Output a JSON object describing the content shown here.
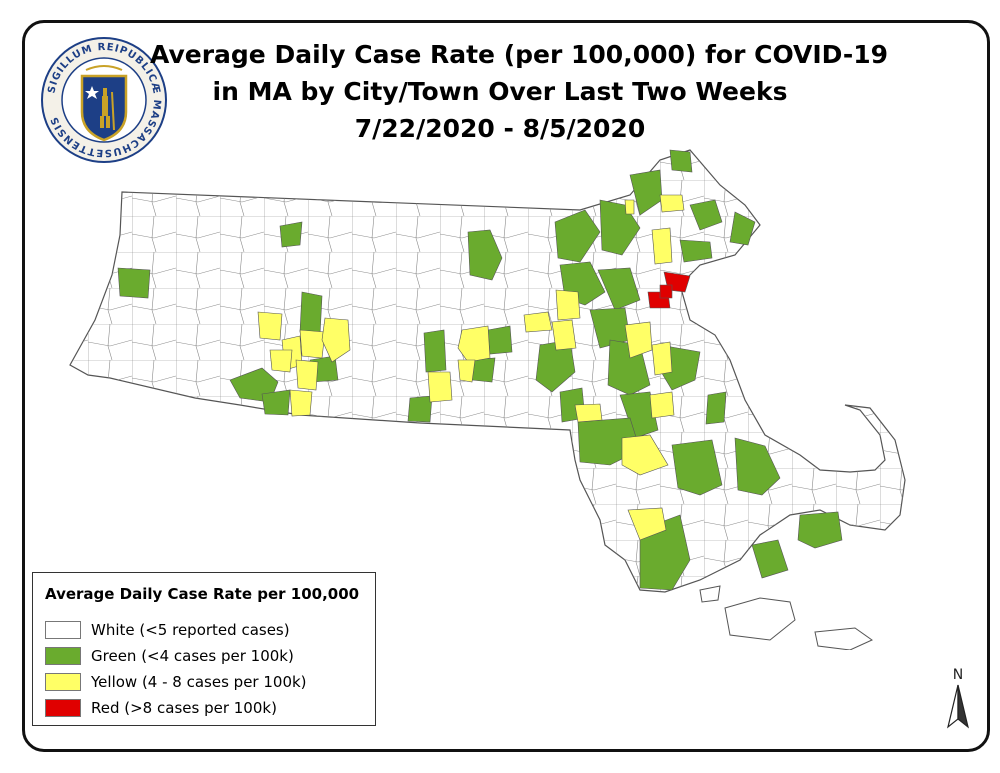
{
  "title": {
    "line1": "Average Daily Case Rate (per 100,000) for COVID-19",
    "line2": "in MA by City/Town Over Last Two Weeks",
    "line3": "7/22/2020 - 8/5/2020"
  },
  "seal": {
    "outer_text": "SIGILLUM REIPUBLICÆ MASSACHUSETTENSIS"
  },
  "legend": {
    "title": "Average Daily Case Rate per 100,000",
    "items": [
      {
        "label": "White (<5 reported cases)",
        "color": "#ffffff"
      },
      {
        "label": "Green (<4 cases per 100k)",
        "color": "#6aab2e"
      },
      {
        "label": "Yellow (4 - 8 cases per 100k)",
        "color": "#ffff66"
      },
      {
        "label": "Red (>8 cases per 100k)",
        "color": "#e00000"
      }
    ]
  },
  "north_arrow": {
    "label": "N"
  },
  "colors": {
    "white": "#ffffff",
    "green": "#6aab2e",
    "yellow": "#ffff66",
    "red": "#e00000",
    "border": "#555555"
  }
}
